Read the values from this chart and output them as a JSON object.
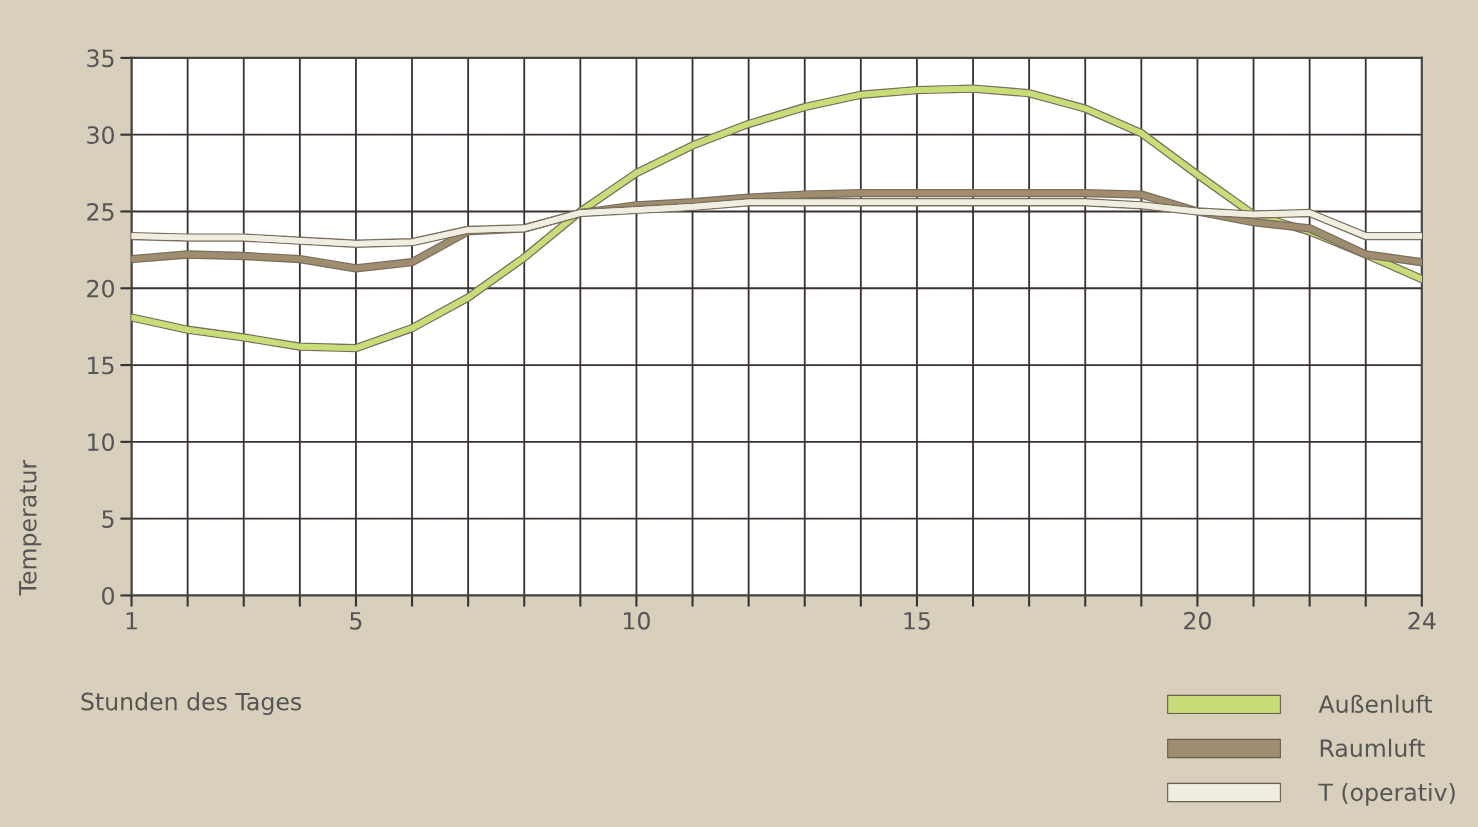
{
  "chart_data": {
    "type": "line",
    "xlabel": "Stunden des Tages",
    "ylabel": "Temperatur",
    "x": [
      1,
      2,
      3,
      4,
      5,
      6,
      7,
      8,
      9,
      10,
      11,
      12,
      13,
      14,
      15,
      16,
      17,
      18,
      19,
      20,
      21,
      22,
      23,
      24
    ],
    "series": [
      {
        "name": "Außenluft",
        "color": "#c8dc78",
        "values": [
          18.1,
          17.3,
          16.8,
          16.2,
          16.1,
          17.4,
          19.4,
          22.0,
          25.0,
          27.5,
          29.3,
          30.7,
          31.8,
          32.6,
          32.9,
          33.0,
          32.7,
          31.7,
          30.1,
          27.4,
          24.8,
          23.7,
          22.2,
          20.6
        ]
      },
      {
        "name": "Raumluft",
        "color": "#a08c6e",
        "values": [
          21.9,
          22.2,
          22.1,
          21.9,
          21.3,
          21.7,
          23.7,
          23.9,
          24.9,
          25.4,
          25.6,
          25.9,
          26.1,
          26.2,
          26.2,
          26.2,
          26.2,
          26.2,
          26.1,
          25.0,
          24.3,
          23.9,
          22.2,
          21.7
        ]
      },
      {
        "name": "T (operativ)",
        "color": "#f0eee0",
        "values": [
          23.4,
          23.3,
          23.3,
          23.1,
          22.9,
          23.0,
          23.8,
          23.9,
          24.9,
          25.1,
          25.3,
          25.6,
          25.6,
          25.6,
          25.6,
          25.6,
          25.6,
          25.6,
          25.4,
          25.0,
          24.8,
          24.9,
          23.4,
          23.4
        ]
      }
    ],
    "xlim": [
      1,
      24
    ],
    "xticks": [
      1,
      {
        "value": 2,
        "label": null
      },
      {
        "value": 3,
        "label": null
      },
      {
        "value": 4,
        "label": null
      },
      5,
      {
        "value": 6,
        "label": null
      },
      {
        "value": 7,
        "label": null
      },
      {
        "value": 8,
        "label": null
      },
      {
        "value": 9,
        "label": null
      },
      10,
      {
        "value": 11,
        "label": null
      },
      {
        "value": 12,
        "label": null
      },
      {
        "value": 13,
        "label": null
      },
      {
        "value": 14,
        "label": null
      },
      15,
      {
        "value": 16,
        "label": null
      },
      {
        "value": 17,
        "label": null
      },
      {
        "value": 18,
        "label": null
      },
      {
        "value": 19,
        "label": null
      },
      20,
      {
        "value": 21,
        "label": null
      },
      {
        "value": 22,
        "label": null
      },
      {
        "value": 23,
        "label": null
      },
      24
    ],
    "ylim": [
      0,
      35
    ],
    "yticks": [
      0,
      5,
      10,
      15,
      20,
      25,
      30,
      35
    ],
    "grid": true,
    "legend": "bottom right",
    "marker": "none",
    "line_style": "solid"
  }
}
